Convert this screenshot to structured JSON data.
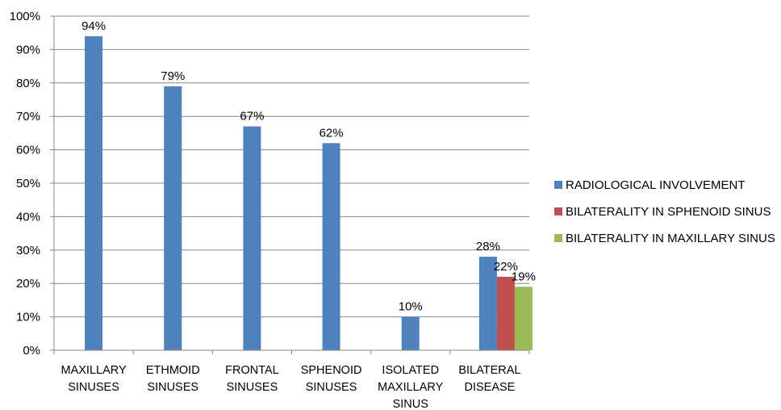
{
  "chart_data": {
    "type": "bar",
    "title": "",
    "xlabel": "",
    "ylabel": "",
    "ylim": [
      0,
      100
    ],
    "yticks": [
      "0%",
      "10%",
      "20%",
      "30%",
      "40%",
      "50%",
      "60%",
      "70%",
      "80%",
      "90%",
      "100%"
    ],
    "grid": true,
    "legend_position": "right",
    "categories": [
      [
        "MAXILLARY",
        "SINUSES"
      ],
      [
        "ETHMOID",
        "SINUSES"
      ],
      [
        "FRONTAL",
        "SINUSES"
      ],
      [
        "SPHENOID",
        "SINUSES"
      ],
      [
        "ISOLATED",
        "MAXILLARY",
        "SINUS"
      ],
      [
        "BILATERAL",
        "DISEASE"
      ]
    ],
    "series": [
      {
        "name": "RADIOLOGICAL INVOLVEMENT",
        "color": "#4F81BD",
        "values": [
          94,
          79,
          67,
          62,
          10,
          28
        ],
        "labels": [
          "94%",
          "79%",
          "67%",
          "62%",
          "10%",
          "28%"
        ]
      },
      {
        "name": "BILATERALITY IN SPHENOID SINUS",
        "color": "#C0504D",
        "values": [
          null,
          null,
          null,
          null,
          null,
          22
        ],
        "labels": [
          null,
          null,
          null,
          null,
          null,
          "22%"
        ]
      },
      {
        "name": "BILATERALITY IN MAXILLARY SINUS",
        "color": "#9BBB59",
        "values": [
          null,
          null,
          null,
          null,
          null,
          19
        ],
        "labels": [
          null,
          null,
          null,
          null,
          null,
          "19%"
        ]
      }
    ]
  }
}
